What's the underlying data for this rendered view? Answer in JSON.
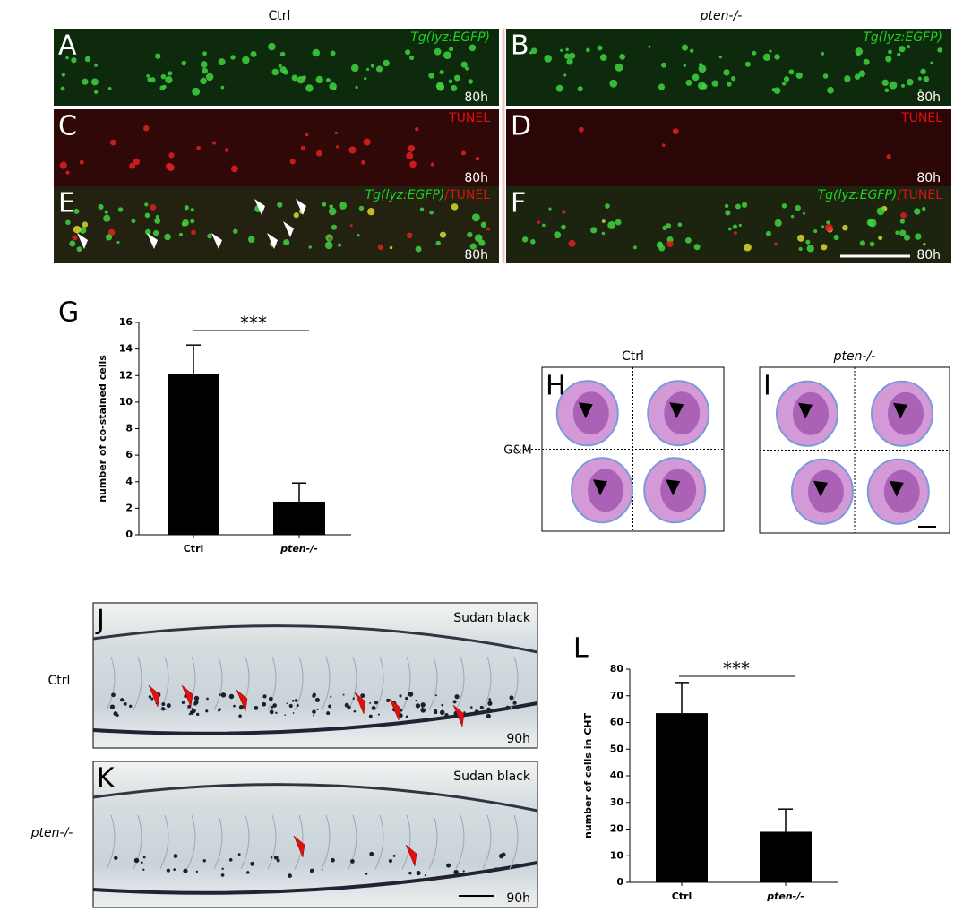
{
  "headers": {
    "ctrl": "Ctrl",
    "pten": "pten-/-"
  },
  "fluor_panels": [
    {
      "letter": "A",
      "label": "Tg(lyz:EGFP)",
      "time": "80h"
    },
    {
      "letter": "B",
      "label": "Tg(lyz:EGFP)",
      "time": "80h"
    },
    {
      "letter": "C",
      "label": "TUNEL",
      "time": "80h"
    },
    {
      "letter": "D",
      "label": "TUNEL",
      "time": "80h"
    },
    {
      "letter": "E",
      "label": "Tg(lyz:EGFP)",
      "label2": "/TUNEL",
      "time": "80h"
    },
    {
      "letter": "F",
      "label": "Tg(lyz:EGFP)",
      "label2": "/TUNEL",
      "time": "80h"
    }
  ],
  "cell_panels": [
    {
      "letter": "H",
      "title": "Ctrl"
    },
    {
      "letter": "I",
      "title": "pten-/-"
    }
  ],
  "gm_label": "G&M",
  "sudan_panels": [
    {
      "letter": "J",
      "label": "Sudan black",
      "time": "90h",
      "row": "Ctrl"
    },
    {
      "letter": "K",
      "label": "Sudan black",
      "time": "90h",
      "row": "pten-/-"
    }
  ],
  "chart_data": [
    {
      "type": "bar",
      "letter": "G",
      "y_label": "number of co-stained cells",
      "annotation": "***",
      "categories": [
        "Ctrl",
        "pten-/-"
      ],
      "series": [
        {
          "color": "#000000",
          "values": [
            12.1,
            2.5
          ],
          "errors": [
            2.2,
            1.4
          ]
        }
      ],
      "ylim": [
        0,
        16
      ],
      "yticks": [
        0,
        2,
        4,
        6,
        8,
        10,
        12,
        14,
        16
      ]
    },
    {
      "type": "bar",
      "letter": "L",
      "y_label": "number of cells in CHT",
      "annotation": "***",
      "categories": [
        "Ctrl",
        "pten-/-"
      ],
      "series": [
        {
          "color": "#000000",
          "values": [
            63.5,
            19
          ],
          "errors": [
            11.5,
            8.5
          ]
        }
      ],
      "ylim": [
        0,
        80
      ],
      "yticks": [
        0,
        10,
        20,
        30,
        40,
        50,
        60,
        70,
        80
      ]
    }
  ]
}
